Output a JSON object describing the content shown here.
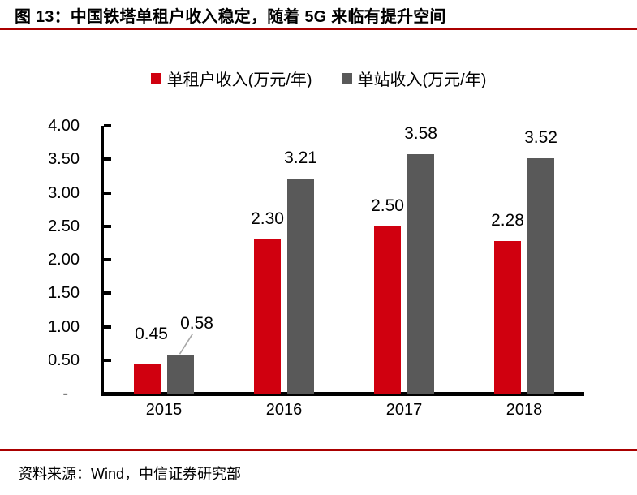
{
  "title": "图 13：中国铁塔单租户收入稳定，随着 5G 来临有提升空间",
  "source": "资料来源：Wind，中信证券研究部",
  "colors": {
    "bar_red": "#D0000F",
    "bar_gray": "#595959",
    "rule_red": "#AA0000",
    "leader_gray": "#A6A6A6",
    "axis_black": "#000000"
  },
  "legend": {
    "items": [
      {
        "label": "单租户收入(万元/年)",
        "color": "#D0000F"
      },
      {
        "label": "单站收入(万元/年)",
        "color": "#595959"
      }
    ]
  },
  "chart_data": {
    "type": "bar",
    "categories": [
      "2015",
      "2016",
      "2017",
      "2018"
    ],
    "series": [
      {
        "name": "单租户收入(万元/年)",
        "color": "#D0000F",
        "values": [
          0.45,
          2.3,
          2.5,
          2.28
        ]
      },
      {
        "name": "单站收入(万元/年)",
        "color": "#595959",
        "values": [
          0.58,
          3.21,
          3.58,
          3.52
        ]
      }
    ],
    "ylim": [
      0,
      4
    ],
    "ytick_step": 0.5,
    "ytick_labels": [
      "4.00",
      "3.50",
      "3.00",
      "2.50",
      "2.00",
      "1.50",
      "1.00",
      "0.50",
      "-"
    ],
    "grid": false,
    "legend_position": "top",
    "data_labels_shown": true,
    "callout": {
      "series": 1,
      "category": "2015",
      "label": "0.58"
    }
  }
}
